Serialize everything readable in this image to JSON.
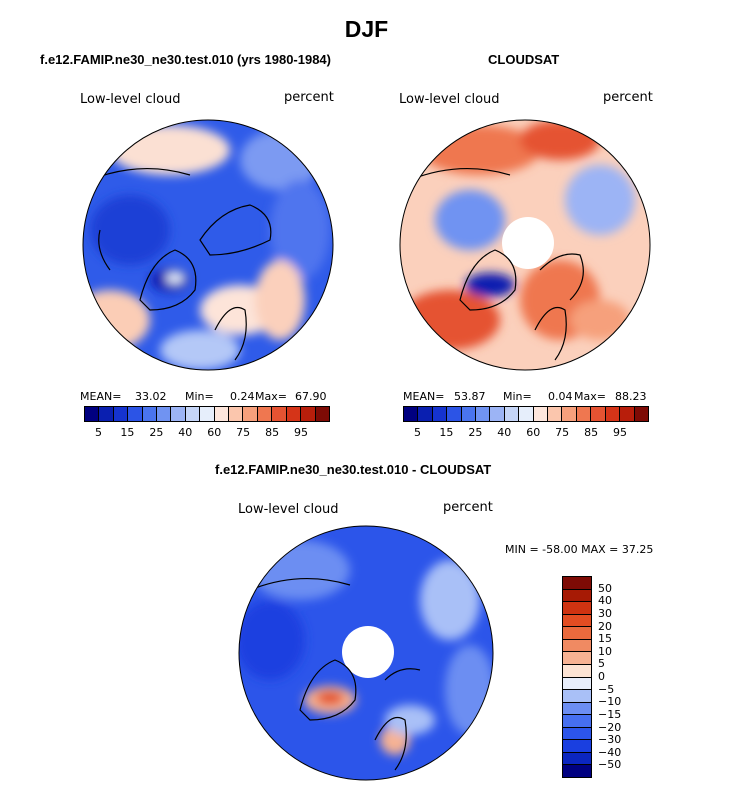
{
  "title": "DJF",
  "colors": {
    "abs_scale": [
      "#000080",
      "#0a1fb0",
      "#1533d0",
      "#2c54e6",
      "#4a74ee",
      "#7093f2",
      "#9cb4f5",
      "#c5d5f7",
      "#e6eefb",
      "#fde6dc",
      "#fbc6ad",
      "#f6a07c",
      "#ef7750",
      "#e55332",
      "#d53418",
      "#b81e0b",
      "#7e0b05"
    ],
    "diff_scale": [
      "#000080",
      "#0b26c0",
      "#1a3fe0",
      "#2c55ea",
      "#466ff0",
      "#6c8ef2",
      "#a9c0f7",
      "#e8eefb",
      "#fce3d4",
      "#f7b293",
      "#f08a62",
      "#ea6a3d",
      "#e34d22",
      "#cf3311",
      "#a61a05",
      "#7e0b05"
    ]
  },
  "chart_data": [
    {
      "type": "heatmap",
      "title": "f.e12.FAMIP.ne30_ne30.test.010 (yrs 1980-1984)",
      "left_label": "Low-level cloud",
      "right_label": "percent",
      "stats": {
        "mean_label": "MEAN=",
        "mean": "33.02",
        "min_label": "Min=",
        "min": "0.24",
        "max_label": "Max=",
        "max": "67.90"
      },
      "colorbar_ticks": [
        "5",
        "15",
        "25",
        "40",
        "60",
        "75",
        "85",
        "95"
      ]
    },
    {
      "type": "heatmap",
      "title": "CLOUDSAT",
      "left_label": "Low-level cloud",
      "right_label": "percent",
      "stats": {
        "mean_label": "MEAN=",
        "mean": "53.87",
        "min_label": "Min=",
        "min": "0.04",
        "max_label": "Max=",
        "max": "88.23"
      },
      "colorbar_ticks": [
        "5",
        "15",
        "25",
        "40",
        "60",
        "75",
        "85",
        "95"
      ]
    },
    {
      "type": "heatmap",
      "title": "f.e12.FAMIP.ne30_ne30.test.010 - CLOUDSAT",
      "left_label": "Low-level cloud",
      "right_label": "percent",
      "minmax": "MIN = -58.00 MAX =  37.25",
      "colorbar_ticks": [
        "50",
        "40",
        "30",
        "20",
        "15",
        "10",
        "5",
        "0",
        "−5",
        "−10",
        "−15",
        "−20",
        "−30",
        "−40",
        "−50"
      ]
    }
  ]
}
